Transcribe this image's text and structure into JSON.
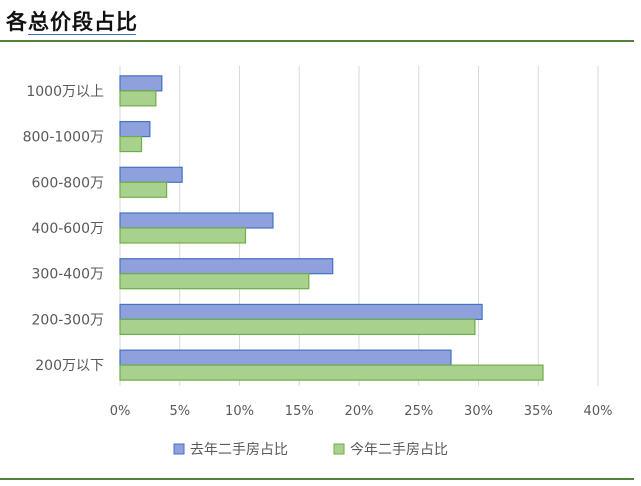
{
  "header": {
    "title": "各总价段占比"
  },
  "chart_data": {
    "type": "bar",
    "orientation": "horizontal",
    "categories": [
      "1000万以上",
      "800-1000万",
      "600-800万",
      "400-600万",
      "300-400万",
      "200-300万",
      "200万以下"
    ],
    "series": [
      {
        "name": "去年二手房占比",
        "color": "#8ea1dc",
        "stroke": "#4472c4",
        "values": [
          0.035,
          0.025,
          0.052,
          0.128,
          0.178,
          0.303,
          0.277
        ]
      },
      {
        "name": "今年二手房占比",
        "color": "#a9d18e",
        "stroke": "#70ad47",
        "values": [
          0.03,
          0.018,
          0.039,
          0.105,
          0.158,
          0.297,
          0.354
        ]
      }
    ],
    "xlim": [
      0,
      0.4
    ],
    "xticks": [
      "0%",
      "5%",
      "10%",
      "15%",
      "20%",
      "25%",
      "30%",
      "35%",
      "40%"
    ],
    "grid": true,
    "legend": "bottom-center"
  }
}
